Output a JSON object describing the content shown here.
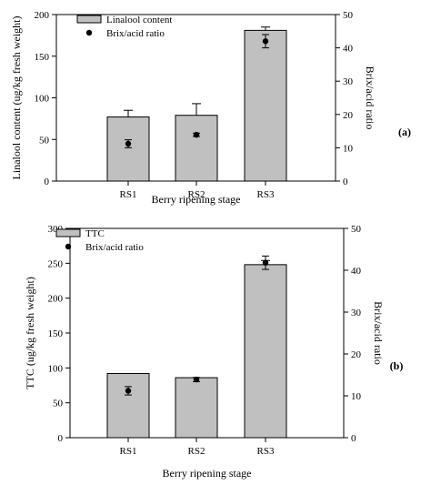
{
  "chart_data": [
    {
      "type": "bar",
      "panel_label": "(a)",
      "categories": [
        "RS1",
        "RS2",
        "RS3"
      ],
      "xlabel": "Berry ripening stage",
      "ylabel": "Linalool content (ug/kg fresh weight)",
      "ylabel_right": "Brix/acid ratio",
      "ylim": [
        0,
        200
      ],
      "ylim_right": [
        0,
        50
      ],
      "yticks": [
        0,
        50,
        100,
        150,
        200
      ],
      "yticks_right": [
        0,
        10,
        20,
        30,
        40,
        50
      ],
      "legend_position": "top-left",
      "series": [
        {
          "name": "Linalool content",
          "kind": "bar",
          "axis": "left",
          "values": [
            77,
            79,
            181
          ],
          "errors": [
            8,
            14,
            4
          ],
          "color": "#c0c0c0"
        },
        {
          "name": "Brix/acid ratio",
          "kind": "point",
          "axis": "right",
          "values": [
            11.2,
            13.9,
            42
          ],
          "errors": [
            1.2,
            0.5,
            2
          ],
          "color": "#000000"
        }
      ]
    },
    {
      "type": "bar",
      "panel_label": "(b)",
      "categories": [
        "RS1",
        "RS2",
        "RS3"
      ],
      "xlabel": "Berry ripening stage",
      "ylabel": "TTC (ug/kg fresh weight)",
      "ylabel_right": "Brix/acid ratio",
      "ylim": [
        0,
        300
      ],
      "ylim_right": [
        0,
        50
      ],
      "yticks": [
        0,
        50,
        100,
        150,
        200,
        250,
        300
      ],
      "yticks_right": [
        0,
        10,
        20,
        30,
        40,
        50
      ],
      "legend_position": "top-left",
      "series": [
        {
          "name": "TTC",
          "kind": "bar",
          "axis": "left",
          "values": [
            92,
            86,
            248
          ],
          "errors": [
            0,
            0,
            6
          ],
          "color": "#c0c0c0"
        },
        {
          "name": "Brix/acid ratio",
          "kind": "point",
          "axis": "right",
          "values": [
            11.2,
            13.9,
            41.8
          ],
          "errors": [
            1.0,
            0.5,
            1.6
          ],
          "color": "#000000"
        }
      ]
    }
  ]
}
